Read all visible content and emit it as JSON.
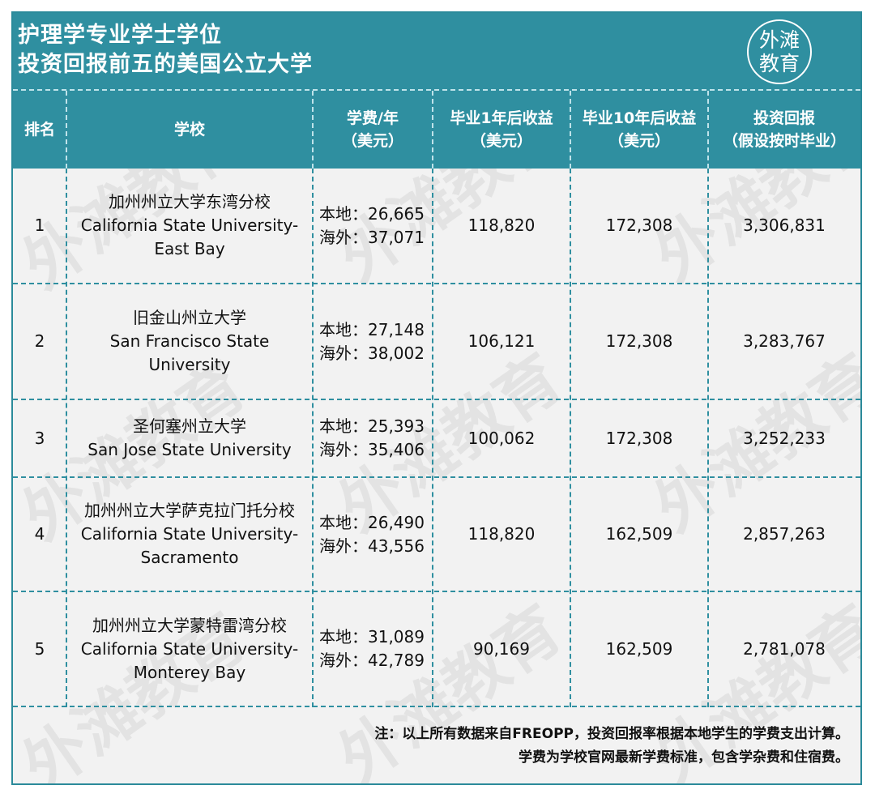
{
  "title": {
    "line1": "护理学专业学士学位",
    "line2": "投资回报前五的美国公立大学"
  },
  "logo": {
    "line1": "外滩",
    "line2": "教育"
  },
  "watermark": "外滩教育",
  "headers": {
    "rank": "排名",
    "school": "学校",
    "tuition": {
      "line1": "学费/年",
      "line2": "（美元）"
    },
    "earn1": {
      "line1": "毕业1年后收益",
      "line2": "（美元）"
    },
    "earn10": {
      "line1": "毕业10年后收益",
      "line2": "（美元）"
    },
    "roi": {
      "line1": "投资回报",
      "line2": "（假设按时毕业）"
    }
  },
  "rows": [
    {
      "rank": "1",
      "school_lines": [
        "加州州立大学东湾分校",
        "California State University-",
        "East Bay"
      ],
      "tuition_local": "本地：26,665",
      "tuition_intl": "海外：37,071",
      "earn1": "118,820",
      "earn10": "172,308",
      "roi": "3,306,831"
    },
    {
      "rank": "2",
      "school_lines": [
        "旧金山州立大学",
        "San Francisco State",
        "University"
      ],
      "tuition_local": "本地：27,148",
      "tuition_intl": "海外：38,002",
      "earn1": "106,121",
      "earn10": "172,308",
      "roi": "3,283,767"
    },
    {
      "rank": "3",
      "school_lines": [
        "圣何塞州立大学",
        "San Jose State University"
      ],
      "tuition_local": "本地：25,393",
      "tuition_intl": "海外：35,406",
      "earn1": "100,062",
      "earn10": "172,308",
      "roi": "3,252,233"
    },
    {
      "rank": "4",
      "school_lines": [
        "加州州立大学萨克拉门托分校",
        "California State University-",
        "Sacramento"
      ],
      "tuition_local": "本地：26,490",
      "tuition_intl": "海外：43,556",
      "earn1": "118,820",
      "earn10": "162,509",
      "roi": "2,857,263"
    },
    {
      "rank": "5",
      "school_lines": [
        "加州州立大学蒙特雷湾分校",
        "California State University-",
        "Monterey Bay"
      ],
      "tuition_local": "本地：31,089",
      "tuition_intl": "海外：42,789",
      "earn1": "90,169",
      "earn10": "162,509",
      "roi": "2,781,078"
    }
  ],
  "note": {
    "line1": "注：以上所有数据来自FREOPP，投资回报率根据本地学生的学费支出计算。",
    "line2": "学费为学校官网最新学费标准，包含学杂费和住宿费。"
  }
}
